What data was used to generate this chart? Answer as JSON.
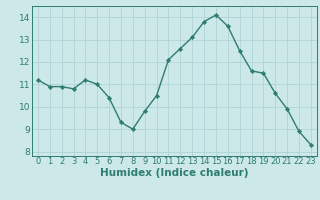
{
  "x": [
    0,
    1,
    2,
    3,
    4,
    5,
    6,
    7,
    8,
    9,
    10,
    11,
    12,
    13,
    14,
    15,
    16,
    17,
    18,
    19,
    20,
    21,
    22,
    23
  ],
  "y": [
    11.2,
    10.9,
    10.9,
    10.8,
    11.2,
    11.0,
    10.4,
    9.3,
    9.0,
    9.8,
    10.5,
    12.1,
    12.6,
    13.1,
    13.8,
    14.1,
    13.6,
    12.5,
    11.6,
    11.5,
    10.6,
    9.9,
    8.9,
    8.3
  ],
  "xlabel": "Humidex (Indice chaleur)",
  "ylim": [
    7.8,
    14.5
  ],
  "xlim": [
    -0.5,
    23.5
  ],
  "yticks": [
    8,
    9,
    10,
    11,
    12,
    13,
    14
  ],
  "xticks": [
    0,
    1,
    2,
    3,
    4,
    5,
    6,
    7,
    8,
    9,
    10,
    11,
    12,
    13,
    14,
    15,
    16,
    17,
    18,
    19,
    20,
    21,
    22,
    23
  ],
  "line_color": "#2e7d6e",
  "bg_color": "#cce8e8",
  "grid_color": "#afd4d4",
  "marker": "D",
  "marker_size": 2.2,
  "line_width": 1.0,
  "xlabel_fontsize": 7.5,
  "tick_fontsize": 6.0,
  "ytick_fontsize": 6.5
}
